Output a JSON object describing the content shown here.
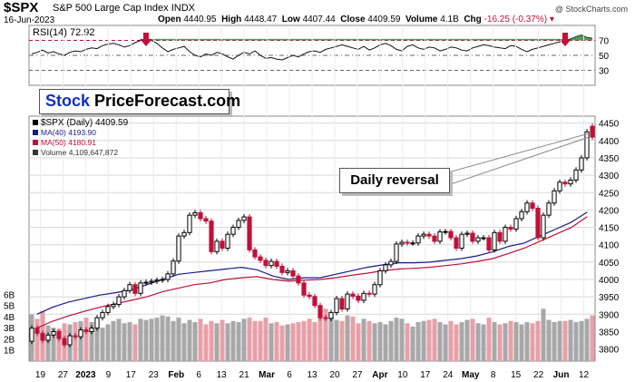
{
  "header": {
    "symbol": "$SPX",
    "description": "S&P 500 Large Cap Index",
    "exchange": "INDX",
    "date": "16-Jun-2023",
    "open_label": "Open",
    "open": "4440.95",
    "high_label": "High",
    "high": "4448.47",
    "low_label": "Low",
    "low": "4407.44",
    "close_label": "Close",
    "close": "4409.59",
    "volume_label": "Volume",
    "volume": "4.1B",
    "chg_label": "Chg",
    "chg": "-16.25 (-0.37%)",
    "credit": "@ StockCharts.com"
  },
  "logo": {
    "part1": "Stock",
    "part2": "PriceForecast.com"
  },
  "callout": "Daily reversal",
  "legend": {
    "price": "$SPX (Daily) 4409.59",
    "ma40": "MA(40) 4193.90",
    "ma50": "MA(50) 4180.91",
    "volume": "Volume 4,109,647,872"
  },
  "colors": {
    "up": "#000000",
    "down": "#c0103a",
    "ma40": "#1a1a8c",
    "ma50": "#c0103a",
    "rsi_line": "#111111",
    "rsi_ob_fill": "#2e7d32",
    "arrow": "#c0103a",
    "vol_down": "#e8a0a8",
    "vol_up": "#a8a8a8",
    "grid": "#d8d8d8"
  },
  "icons": {
    "arrow": "down-arrow-icon"
  },
  "chart_data": [
    {
      "type": "line",
      "title": "RSI(14) 72.92",
      "y_ticks": [
        70,
        50,
        30
      ],
      "overbought": 70,
      "oversold": 30,
      "ylim": [
        10,
        90
      ],
      "series": [
        {
          "name": "RSI(14)",
          "values": [
            52,
            54,
            57,
            53,
            55,
            52,
            50,
            54,
            56,
            55,
            58,
            60,
            59,
            63,
            65,
            66,
            64,
            61,
            63,
            67,
            70,
            72,
            70,
            66,
            60,
            55,
            58,
            60,
            62,
            55,
            50,
            48,
            52,
            50,
            54,
            52,
            48,
            45,
            50,
            54,
            52,
            56,
            50,
            46,
            47,
            45,
            44,
            47,
            50,
            48,
            52,
            55,
            56,
            54,
            58,
            60,
            62,
            64,
            62,
            60,
            58,
            62,
            57,
            60,
            64,
            66,
            63,
            58,
            56,
            62,
            64,
            60,
            58,
            61,
            60,
            56,
            58,
            61,
            60,
            57,
            56,
            60,
            62,
            64,
            63,
            61,
            60,
            59,
            63,
            62,
            58,
            55,
            58,
            60,
            62,
            64,
            66,
            68,
            70,
            72,
            75,
            77,
            74,
            72.92
          ]
        }
      ],
      "annotations": [
        {
          "type": "arrow",
          "index": 21
        },
        {
          "type": "arrow",
          "index": 98
        }
      ]
    },
    {
      "type": "candlestick",
      "title": "$SPX (Daily) 4409.59",
      "x_ticks": [
        "19",
        "27",
        "2023",
        "9",
        "17",
        "23",
        "Feb",
        "6",
        "13",
        "21",
        "Mar",
        "6",
        "13",
        "20",
        "27",
        "Apr",
        "10",
        "17",
        "24",
        "May",
        "8",
        "15",
        "22",
        "Jun",
        "12"
      ],
      "y_ticks": [
        3800,
        3850,
        3900,
        3950,
        4000,
        4050,
        4100,
        4150,
        4200,
        4250,
        4300,
        4350,
        4400,
        4450
      ],
      "ylim": [
        3765,
        4470
      ],
      "open": [
        3822,
        3860,
        3845,
        3825,
        3840,
        3850,
        3830,
        3812,
        3838,
        3835,
        3855,
        3850,
        3860,
        3890,
        3905,
        3922,
        3928,
        3950,
        3968,
        3985,
        3960,
        3990,
        3992,
        3995,
        3998,
        4000,
        4016,
        4053,
        4125,
        4135,
        4185,
        4192,
        4175,
        4168,
        4080,
        4110,
        4090,
        4130,
        4150,
        4170,
        4180,
        4085,
        4065,
        4055,
        4040,
        4052,
        4038,
        4020,
        4025,
        4010,
        3990,
        3955,
        3951,
        3925,
        3890,
        3888,
        3905,
        3945,
        3915,
        3958,
        3952,
        3940,
        3960,
        3958,
        3985,
        4025,
        4042,
        4052,
        4102,
        4107,
        4105,
        4105,
        4125,
        4130,
        4125,
        4110,
        4137,
        4138,
        4120,
        4090,
        4130,
        4133,
        4110,
        4120,
        4120,
        4085,
        4135,
        4110,
        4150,
        4145,
        4175,
        4195,
        4220,
        4205,
        4120,
        4185,
        4220,
        4255,
        4280,
        4275,
        4286,
        4315,
        4350,
        4440.95
      ],
      "close": [
        3860,
        3845,
        3825,
        3840,
        3850,
        3830,
        3812,
        3838,
        3835,
        3855,
        3850,
        3860,
        3890,
        3905,
        3922,
        3928,
        3950,
        3968,
        3985,
        3960,
        3990,
        3992,
        3995,
        3998,
        4000,
        4016,
        4053,
        4125,
        4135,
        4185,
        4192,
        4175,
        4168,
        4080,
        4110,
        4090,
        4130,
        4150,
        4170,
        4180,
        4085,
        4065,
        4055,
        4040,
        4052,
        4038,
        4020,
        4025,
        4010,
        3990,
        3955,
        3951,
        3925,
        3890,
        3888,
        3905,
        3945,
        3915,
        3958,
        3952,
        3940,
        3960,
        3958,
        3985,
        4025,
        4042,
        4052,
        4102,
        4107,
        4105,
        4105,
        4125,
        4130,
        4125,
        4110,
        4137,
        4138,
        4120,
        4090,
        4130,
        4133,
        4110,
        4120,
        4120,
        4085,
        4135,
        4110,
        4150,
        4145,
        4175,
        4195,
        4220,
        4205,
        4120,
        4185,
        4220,
        4255,
        4280,
        4275,
        4286,
        4315,
        4350,
        4425,
        4409.59
      ],
      "ma40": [
        3900,
        3920,
        3935,
        3945,
        3955,
        3962,
        3970,
        3985,
        4000,
        4015,
        4020,
        4025,
        4030,
        4035,
        4028,
        4010,
        4000,
        4005,
        4005,
        4015,
        4025,
        4035,
        4042,
        4048,
        4048,
        4050,
        4055,
        4060,
        4068,
        4080,
        4095,
        4105,
        4125,
        4145,
        4165,
        4193.9
      ],
      "ma50": [
        3860,
        3880,
        3895,
        3908,
        3920,
        3930,
        3940,
        3950,
        3965,
        3975,
        3985,
        3990,
        4000,
        4005,
        4008,
        4000,
        3995,
        3998,
        4000,
        4005,
        4012,
        4018,
        4025,
        4030,
        4032,
        4035,
        4040,
        4045,
        4052,
        4060,
        4075,
        4090,
        4110,
        4130,
        4150,
        4180.91
      ],
      "series": [
        {
          "name": "MA(40) 4193.90"
        },
        {
          "name": "MA(50) 4180.91"
        }
      ]
    },
    {
      "type": "bar",
      "title": "Volume 4,109,647,872",
      "y_ticks": [
        "1B",
        "2B",
        "3B",
        "4B",
        "5B",
        "6B"
      ],
      "ylim": [
        0,
        7
      ],
      "values": [
        4.2,
        3.8,
        4.5,
        3.2,
        3.0,
        2.9,
        3.4,
        3.3,
        3.5,
        3.6,
        3.9,
        3.5,
        3.4,
        3.0,
        3.3,
        3.6,
        3.8,
        3.4,
        3.5,
        3.3,
        3.8,
        3.7,
        3.8,
        3.9,
        4.1,
        4.0,
        3.6,
        3.9,
        3.4,
        3.7,
        3.5,
        3.8,
        3.3,
        3.6,
        3.4,
        3.7,
        3.4,
        3.6,
        3.5,
        3.8,
        3.9,
        3.6,
        3.6,
        3.9,
        3.4,
        3.5,
        3.2,
        3.3,
        3.4,
        3.5,
        3.6,
        3.8,
        3.5,
        4.6,
        4.7,
        3.9,
        3.7,
        3.6,
        4.1,
        4.0,
        3.4,
        3.8,
        3.6,
        3.4,
        3.5,
        3.3,
        3.6,
        3.9,
        3.8,
        3.4,
        3.1,
        3.5,
        3.6,
        3.7,
        3.8,
        3.5,
        3.3,
        3.6,
        3.3,
        3.5,
        3.7,
        3.8,
        3.4,
        3.3,
        3.9,
        3.5,
        3.3,
        3.4,
        3.6,
        3.5,
        3.3,
        3.5,
        3.4,
        3.6,
        4.7,
        3.7,
        3.5,
        3.6,
        3.6,
        3.7,
        3.5,
        3.6,
        3.8,
        4.1
      ]
    }
  ]
}
